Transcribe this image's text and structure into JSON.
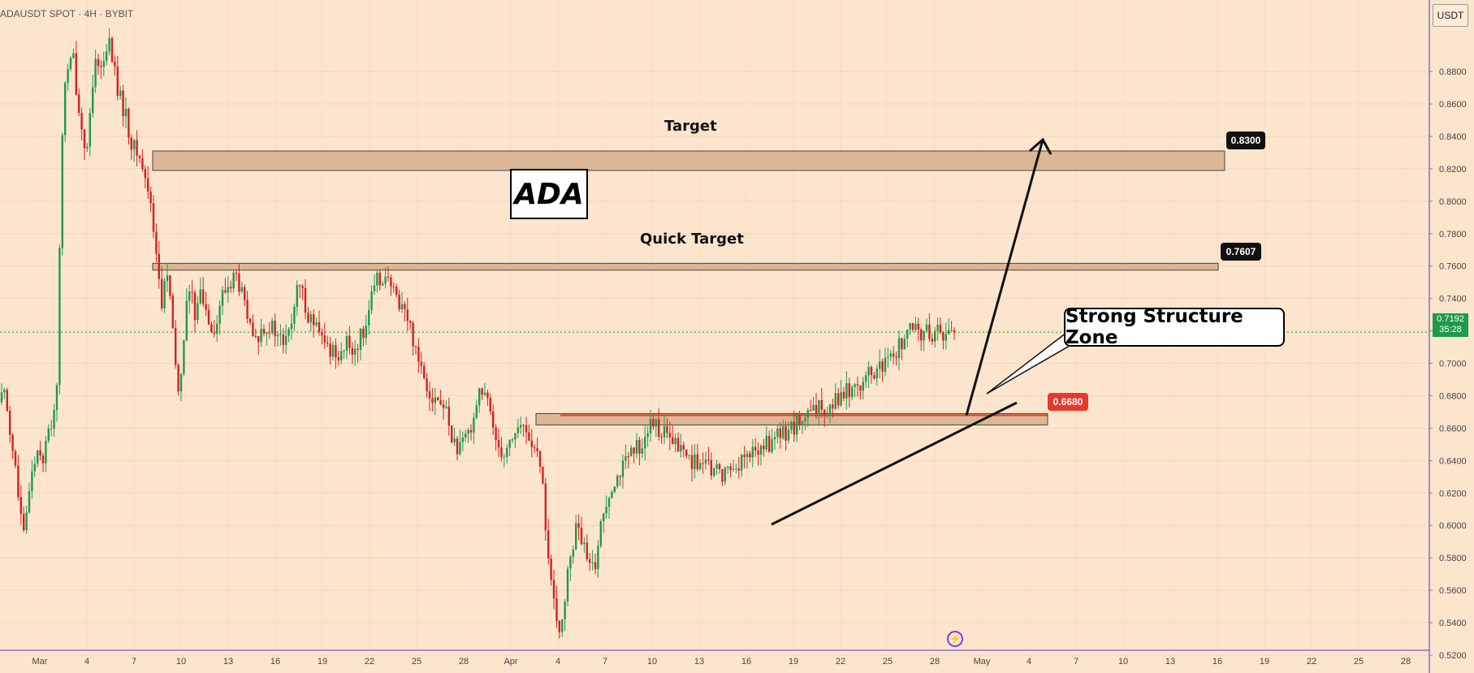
{
  "header": {
    "symbol_text": "ADAUSDT SPOT · 4H · BYBIT",
    "currency_label": "USDT"
  },
  "annotations": {
    "title": "ADA",
    "target_label": "Target",
    "quick_target_label": "Quick Target",
    "structure_label": "Strong Structure Zone",
    "target_value": "0.8300",
    "quick_target_value": "0.7607",
    "structure_value": "0.6680",
    "last_price": "0.7192",
    "countdown": "35:28"
  },
  "icons": {
    "bolt": "lightning-bolt-icon"
  },
  "colors": {
    "background": "#fce5cd",
    "up_candle": "#1e9a4a",
    "down_candle": "#d42020",
    "zone_fill": "#d9b38f",
    "structure_tag": "#e8382c",
    "price_tag": "#1e9a4a"
  },
  "chart_data": {
    "type": "candlestick",
    "symbol": "ADAUSDT",
    "interval": "4H",
    "y_axis_ticks": [
      "0.8800",
      "0.8600",
      "0.8400",
      "0.8200",
      "0.8000",
      "0.7800",
      "0.7600",
      "0.7400",
      "0.7200",
      "0.7000",
      "0.6800",
      "0.6600",
      "0.6400",
      "0.6200",
      "0.6000",
      "0.5800",
      "0.5600",
      "0.5400",
      "0.5200"
    ],
    "x_axis_ticks": [
      "Mar",
      "4",
      "7",
      "10",
      "13",
      "16",
      "19",
      "22",
      "25",
      "28",
      "Apr",
      "4",
      "7",
      "10",
      "13",
      "16",
      "19",
      "22",
      "25",
      "28",
      "May",
      "4",
      "7",
      "10",
      "13",
      "16",
      "19",
      "22",
      "25",
      "28"
    ],
    "ylim": [
      0.515,
      0.9
    ],
    "zones": [
      {
        "name": "Target",
        "low": 0.823,
        "high": 0.83
      },
      {
        "name": "Quick Target",
        "low": 0.7585,
        "high": 0.7607
      },
      {
        "name": "Strong Structure Zone",
        "low": 0.663,
        "high": 0.668
      }
    ],
    "last_price": 0.7192,
    "path": [
      [
        0,
        0.676
      ],
      [
        6,
        0.685
      ],
      [
        12,
        0.66
      ],
      [
        18,
        0.64
      ],
      [
        24,
        0.61
      ],
      [
        30,
        0.59
      ],
      [
        36,
        0.625
      ],
      [
        42,
        0.64
      ],
      [
        48,
        0.65
      ],
      [
        54,
        0.64
      ],
      [
        58,
        0.655
      ],
      [
        62,
        0.66
      ],
      [
        66,
        0.67
      ],
      [
        70,
        0.69
      ],
      [
        74,
        0.78
      ],
      [
        78,
        0.87
      ],
      [
        84,
        0.88
      ],
      [
        90,
        0.89
      ],
      [
        96,
        0.86
      ],
      [
        102,
        0.84
      ],
      [
        108,
        0.83
      ],
      [
        114,
        0.87
      ],
      [
        120,
        0.89
      ],
      [
        126,
        0.88
      ],
      [
        132,
        0.9
      ],
      [
        138,
        0.89
      ],
      [
        144,
        0.87
      ],
      [
        150,
        0.86
      ],
      [
        156,
        0.85
      ],
      [
        162,
        0.835
      ],
      [
        168,
        0.83
      ],
      [
        174,
        0.825
      ],
      [
        180,
        0.81
      ],
      [
        186,
        0.8
      ],
      [
        192,
        0.77
      ],
      [
        196,
        0.75
      ],
      [
        200,
        0.73
      ],
      [
        204,
        0.76
      ],
      [
        208,
        0.75
      ],
      [
        212,
        0.72
      ],
      [
        216,
        0.7
      ],
      [
        220,
        0.68
      ],
      [
        224,
        0.7
      ],
      [
        228,
        0.73
      ],
      [
        232,
        0.745
      ],
      [
        236,
        0.74
      ],
      [
        240,
        0.73
      ],
      [
        244,
        0.745
      ],
      [
        248,
        0.74
      ],
      [
        252,
        0.735
      ],
      [
        256,
        0.73
      ],
      [
        260,
        0.725
      ],
      [
        266,
        0.72
      ],
      [
        272,
        0.74
      ],
      [
        278,
        0.745
      ],
      [
        284,
        0.75
      ],
      [
        290,
        0.755
      ],
      [
        296,
        0.745
      ],
      [
        302,
        0.735
      ],
      [
        308,
        0.72
      ],
      [
        314,
        0.712
      ],
      [
        320,
        0.718
      ],
      [
        326,
        0.725
      ],
      [
        332,
        0.722
      ],
      [
        338,
        0.72
      ],
      [
        344,
        0.715
      ],
      [
        350,
        0.712
      ],
      [
        356,
        0.718
      ],
      [
        362,
        0.735
      ],
      [
        368,
        0.748
      ],
      [
        374,
        0.74
      ],
      [
        380,
        0.73
      ],
      [
        386,
        0.725
      ],
      [
        392,
        0.718
      ],
      [
        398,
        0.712
      ],
      [
        404,
        0.71
      ],
      [
        410,
        0.708
      ],
      [
        416,
        0.707
      ],
      [
        422,
        0.708
      ],
      [
        428,
        0.712
      ],
      [
        434,
        0.708
      ],
      [
        440,
        0.712
      ],
      [
        446,
        0.718
      ],
      [
        452,
        0.73
      ],
      [
        458,
        0.74
      ],
      [
        464,
        0.75
      ],
      [
        470,
        0.755
      ],
      [
        476,
        0.752
      ],
      [
        482,
        0.745
      ],
      [
        488,
        0.74
      ],
      [
        494,
        0.738
      ],
      [
        500,
        0.73
      ],
      [
        506,
        0.72
      ],
      [
        512,
        0.71
      ],
      [
        518,
        0.7
      ],
      [
        524,
        0.69
      ],
      [
        530,
        0.682
      ],
      [
        536,
        0.678
      ],
      [
        542,
        0.675
      ],
      [
        548,
        0.672
      ],
      [
        554,
        0.66
      ],
      [
        560,
        0.65
      ],
      [
        566,
        0.645
      ],
      [
        572,
        0.652
      ],
      [
        578,
        0.66
      ],
      [
        584,
        0.67
      ],
      [
        590,
        0.685
      ],
      [
        596,
        0.68
      ],
      [
        602,
        0.672
      ],
      [
        608,
        0.66
      ],
      [
        614,
        0.65
      ],
      [
        620,
        0.645
      ],
      [
        626,
        0.65
      ],
      [
        632,
        0.656
      ],
      [
        638,
        0.66
      ],
      [
        644,
        0.66
      ],
      [
        650,
        0.656
      ],
      [
        656,
        0.65
      ],
      [
        662,
        0.64
      ],
      [
        668,
        0.625
      ],
      [
        672,
        0.6
      ],
      [
        676,
        0.575
      ],
      [
        680,
        0.56
      ],
      [
        684,
        0.54
      ],
      [
        688,
        0.53
      ],
      [
        692,
        0.545
      ],
      [
        698,
        0.565
      ],
      [
        704,
        0.585
      ],
      [
        710,
        0.6
      ],
      [
        716,
        0.59
      ],
      [
        722,
        0.58
      ],
      [
        728,
        0.57
      ],
      [
        734,
        0.58
      ],
      [
        740,
        0.6
      ],
      [
        746,
        0.615
      ],
      [
        752,
        0.625
      ],
      [
        758,
        0.63
      ],
      [
        764,
        0.634
      ],
      [
        770,
        0.638
      ],
      [
        776,
        0.642
      ],
      [
        782,
        0.646
      ],
      [
        788,
        0.65
      ],
      [
        794,
        0.655
      ],
      [
        800,
        0.66
      ],
      [
        806,
        0.662
      ],
      [
        812,
        0.66
      ],
      [
        818,
        0.656
      ],
      [
        824,
        0.652
      ],
      [
        830,
        0.65
      ],
      [
        836,
        0.648
      ],
      [
        842,
        0.645
      ],
      [
        848,
        0.642
      ],
      [
        854,
        0.64
      ],
      [
        860,
        0.638
      ],
      [
        866,
        0.636
      ],
      [
        872,
        0.635
      ],
      [
        878,
        0.634
      ],
      [
        884,
        0.633
      ],
      [
        890,
        0.632
      ],
      [
        896,
        0.634
      ],
      [
        902,
        0.636
      ],
      [
        908,
        0.638
      ],
      [
        914,
        0.64
      ],
      [
        920,
        0.642
      ],
      [
        926,
        0.644
      ],
      [
        932,
        0.646
      ],
      [
        938,
        0.648
      ],
      [
        944,
        0.65
      ],
      [
        950,
        0.652
      ],
      [
        956,
        0.654
      ],
      [
        962,
        0.656
      ],
      [
        968,
        0.658
      ],
      [
        974,
        0.66
      ],
      [
        980,
        0.662
      ],
      [
        986,
        0.664
      ],
      [
        992,
        0.666
      ],
      [
        998,
        0.668
      ],
      [
        1004,
        0.67
      ],
      [
        1010,
        0.672
      ],
      [
        1016,
        0.674
      ],
      [
        1022,
        0.676
      ],
      [
        1028,
        0.678
      ],
      [
        1034,
        0.68
      ],
      [
        1040,
        0.682
      ],
      [
        1046,
        0.684
      ],
      [
        1052,
        0.686
      ],
      [
        1058,
        0.688
      ],
      [
        1064,
        0.69
      ],
      [
        1070,
        0.692
      ],
      [
        1076,
        0.694
      ],
      [
        1082,
        0.696
      ],
      [
        1088,
        0.698
      ],
      [
        1094,
        0.7
      ],
      [
        1100,
        0.705
      ],
      [
        1106,
        0.71
      ],
      [
        1112,
        0.715
      ],
      [
        1118,
        0.719
      ]
    ]
  }
}
